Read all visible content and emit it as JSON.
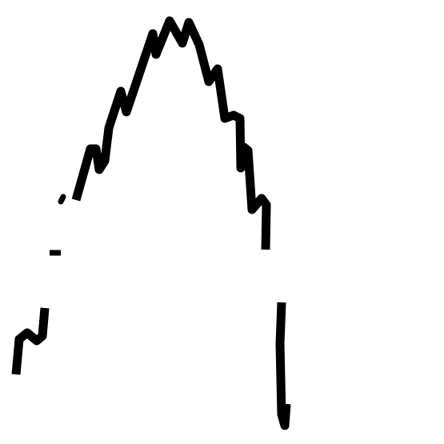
{
  "colors": {
    "background": "#ffffff",
    "stroke": "#000000"
  }
}
